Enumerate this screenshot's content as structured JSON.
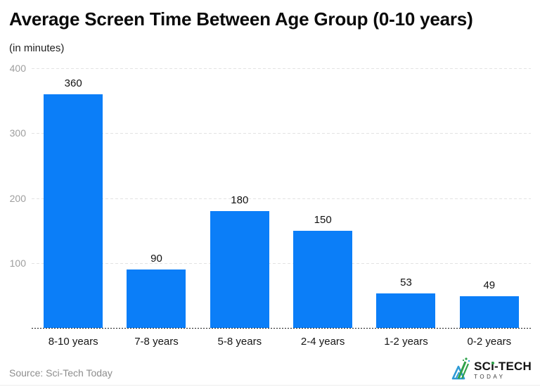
{
  "chart_data": {
    "type": "bar",
    "title": "Average Screen Time Between Age Group (0-10 years)",
    "subtitle": "(in minutes)",
    "categories": [
      "8-10 years",
      "7-8 years",
      "5-8 years",
      "2-4 years",
      "1-2 years",
      "0-2 years"
    ],
    "values": [
      360,
      90,
      180,
      150,
      53,
      49
    ],
    "ylim": [
      0,
      400
    ],
    "yticks": [
      100,
      200,
      300,
      400
    ],
    "grid": "horizontal-dashed",
    "legend": "none",
    "bar_color": "#0b7ef8"
  },
  "footer": {
    "source": "Source: Sci-Tech Today",
    "logo_brand": "SCi-TECH",
    "logo_sub": "TODAY"
  },
  "colors": {
    "bar": "#0b7ef8",
    "grid": "#e3e3e3",
    "tick_label": "#9e9e9e",
    "axis_line": "#1c1c1c",
    "logo_blue": "#2e9ad6",
    "logo_green": "#2fa24b"
  }
}
